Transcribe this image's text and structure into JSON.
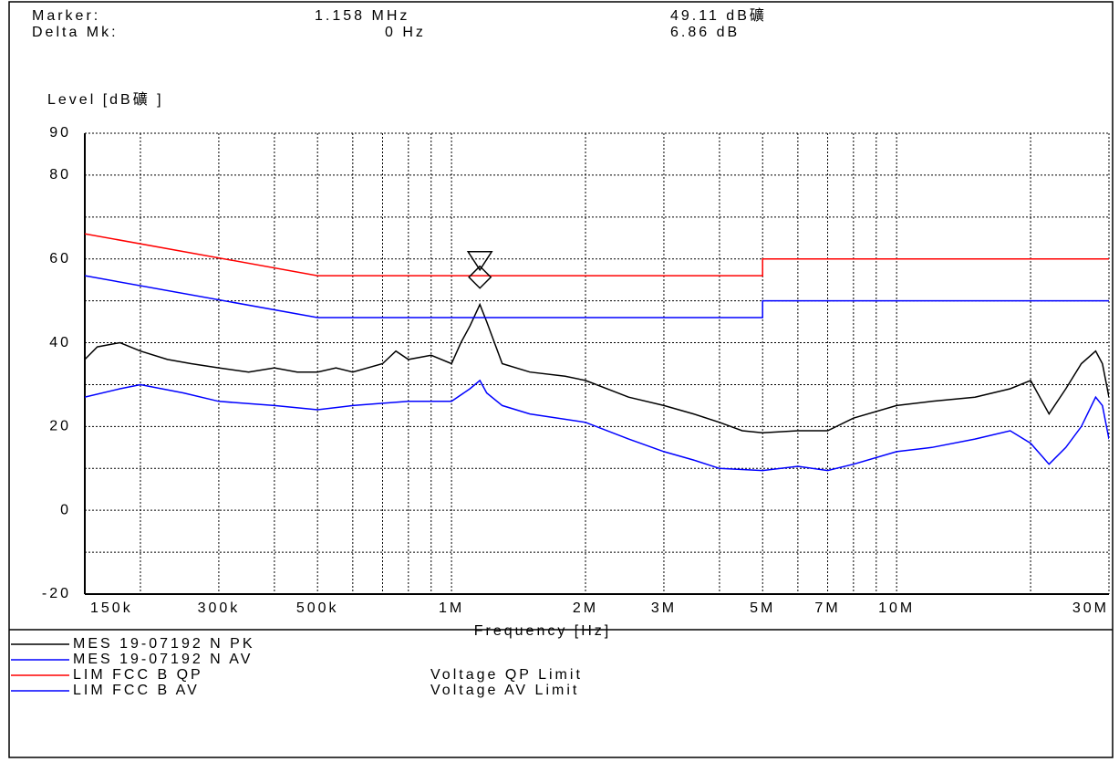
{
  "chart_data": {
    "type": "line",
    "header": {
      "marker_label": "Marker:",
      "marker_freq": "1.158 MHz",
      "marker_level": "49.11 dB礦",
      "delta_label": "Delta Mk:",
      "delta_freq": "0 Hz",
      "delta_level": "6.86 dB"
    },
    "ylabel": "Level [dB礦 ]",
    "xlabel": "Frequency [Hz]",
    "log_x": true,
    "grid": true,
    "xlim": [
      150000,
      30000000
    ],
    "ylim": [
      -20,
      90
    ],
    "yticks": [
      90,
      80,
      60,
      40,
      20,
      0,
      -20
    ],
    "ygrid": [
      70,
      50,
      30,
      10,
      -10
    ],
    "xticks": [
      {
        "value": 150000,
        "label": "150k"
      },
      {
        "value": 300000,
        "label": "300k"
      },
      {
        "value": 500000,
        "label": "500k"
      },
      {
        "value": 1000000,
        "label": "1M"
      },
      {
        "value": 2000000,
        "label": "2M"
      },
      {
        "value": 3000000,
        "label": "3M"
      },
      {
        "value": 5000000,
        "label": "5M"
      },
      {
        "value": 7000000,
        "label": "7M"
      },
      {
        "value": 10000000,
        "label": "10M"
      },
      {
        "value": 30000000,
        "label": "30M"
      }
    ],
    "xgrid": [
      200000,
      400000,
      600000,
      700000,
      800000,
      900000,
      4000000,
      6000000,
      8000000,
      9000000,
      20000000
    ],
    "marker": {
      "x": 1158000,
      "value": 49.11
    },
    "series": [
      {
        "name": "MES  19-07192 N PK",
        "color": "#000000",
        "x": [
          150000,
          160000,
          180000,
          200000,
          230000,
          260000,
          300000,
          350000,
          400000,
          450000,
          500000,
          550000,
          600000,
          700000,
          750000,
          800000,
          900000,
          1000000,
          1050000,
          1100000,
          1158000,
          1200000,
          1300000,
          1500000,
          1800000,
          2000000,
          2500000,
          3000000,
          3500000,
          4000000,
          4500000,
          5000000,
          6000000,
          7000000,
          8000000,
          10000000,
          12000000,
          15000000,
          18000000,
          20000000,
          22000000,
          24000000,
          26000000,
          28000000,
          29000000,
          30000000
        ],
        "values": [
          36,
          39,
          40,
          38,
          36,
          35,
          34,
          33,
          34,
          33,
          33,
          34,
          33,
          35,
          38,
          36,
          37,
          35,
          40,
          44,
          49.11,
          45,
          35,
          33,
          32,
          31,
          27,
          25,
          23,
          21,
          19,
          18.5,
          19,
          19,
          22,
          25,
          26,
          27,
          29,
          31,
          23,
          29,
          35,
          38,
          35,
          27
        ]
      },
      {
        "name": "MES  19-07192 N AV",
        "color": "#0000ff",
        "x": [
          150000,
          180000,
          200000,
          250000,
          300000,
          400000,
          500000,
          600000,
          800000,
          1000000,
          1100000,
          1158000,
          1200000,
          1300000,
          1500000,
          2000000,
          2500000,
          3000000,
          3500000,
          4000000,
          5000000,
          6000000,
          7000000,
          8000000,
          10000000,
          12000000,
          15000000,
          18000000,
          20000000,
          22000000,
          24000000,
          26000000,
          28000000,
          29000000,
          30000000
        ],
        "values": [
          27,
          29,
          30,
          28,
          26,
          25,
          24,
          25,
          26,
          26,
          29,
          31,
          28,
          25,
          23,
          21,
          17,
          14,
          12,
          10,
          9.5,
          10.5,
          9.5,
          11,
          14,
          15,
          17,
          19,
          16,
          11,
          15,
          20,
          27,
          25,
          17
        ]
      },
      {
        "name": "LIM  FCC B QP",
        "description": "Voltage QP Limit",
        "color": "#ff0000",
        "x": [
          150000,
          500000,
          5000000,
          5000000,
          30000000
        ],
        "values": [
          66,
          56,
          56,
          60,
          60
        ]
      },
      {
        "name": "LIM  FCC B AV",
        "description": "Voltage AV Limit",
        "color": "#0000ff",
        "x": [
          150000,
          500000,
          5000000,
          5000000,
          30000000
        ],
        "values": [
          56,
          46,
          46,
          50,
          50
        ]
      }
    ]
  }
}
